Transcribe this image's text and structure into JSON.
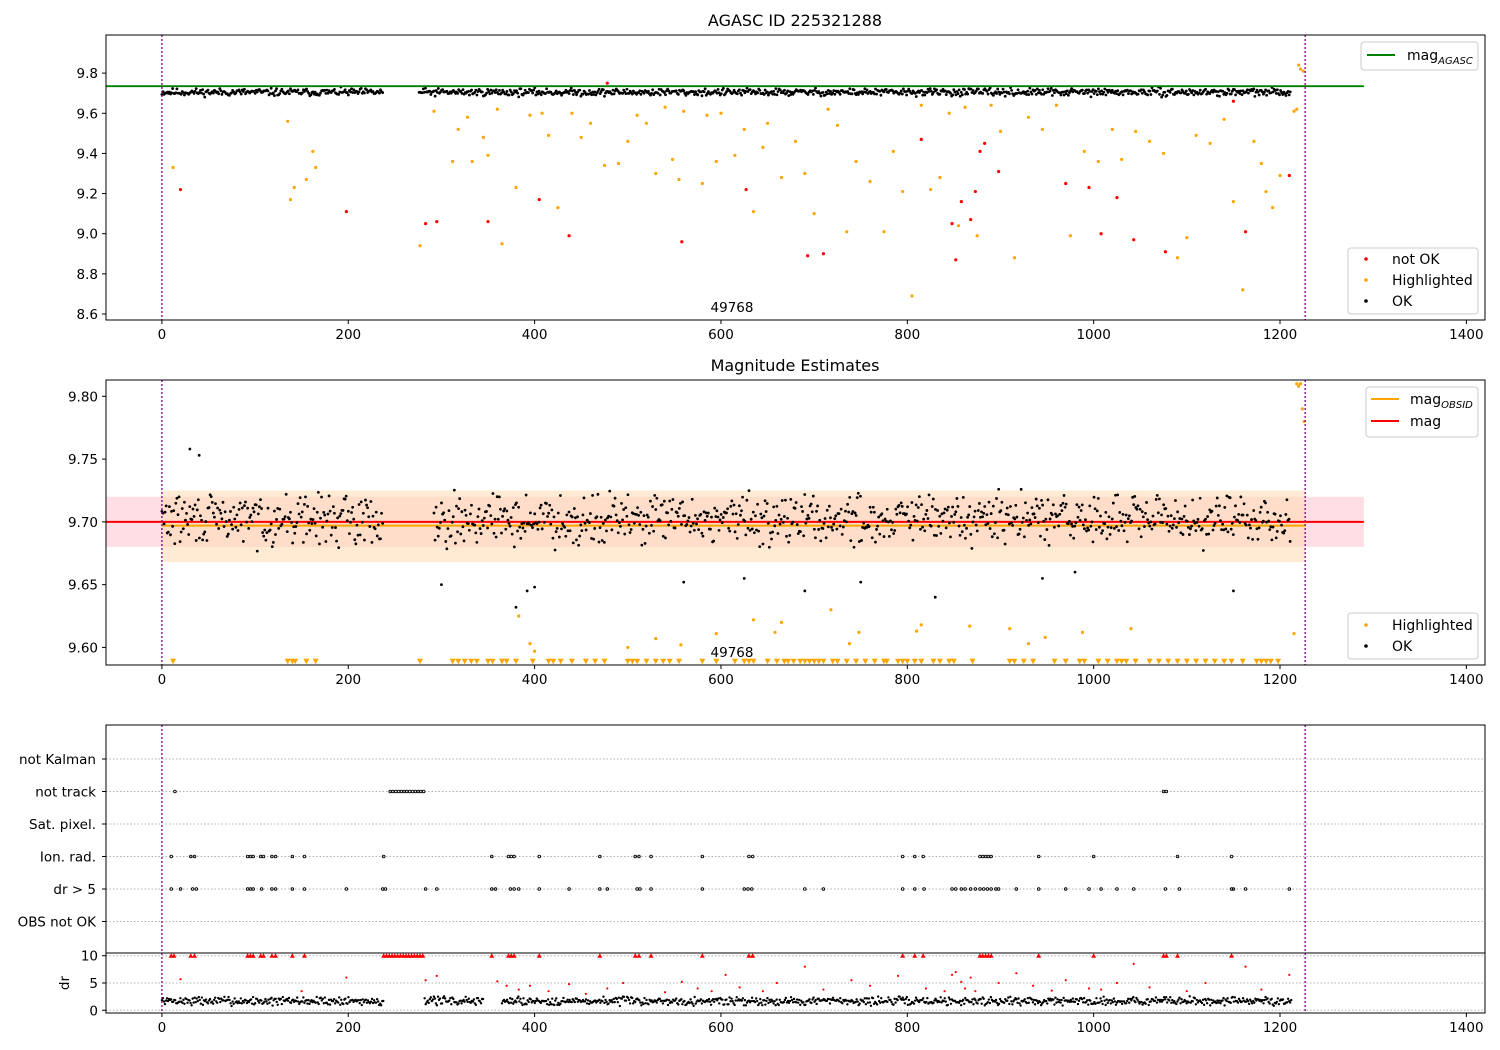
{
  "chart_data": [
    {
      "type": "scatter",
      "title": "AGASC ID 225321288",
      "xlim": [
        -60,
        1420
      ],
      "ylim": [
        8.57,
        9.99
      ],
      "xticks": [
        "0",
        "200",
        "400",
        "600",
        "800",
        "1000",
        "1200",
        "1400"
      ],
      "xtick_values": [
        0,
        200,
        400,
        600,
        800,
        1000,
        1200,
        1400
      ],
      "yticks": [
        "8.6",
        "8.8",
        "9.0",
        "9.2",
        "9.4",
        "9.6",
        "9.8"
      ],
      "ytick_values": [
        8.6,
        8.8,
        9.0,
        9.2,
        9.4,
        9.6,
        9.8
      ],
      "vlines": [
        0,
        1227
      ],
      "annotation": {
        "text": "49768",
        "x": 612,
        "y": 8.62
      },
      "hline": {
        "name": "mag",
        "subscript": "AGASC",
        "y": 9.735,
        "x_range": [
          -60,
          1290
        ],
        "color": "#008000"
      },
      "legend_lines": [
        {
          "label": "mag",
          "subscript": "AGASC",
          "color": "#008000"
        }
      ],
      "legend_points": [
        {
          "label": "not OK",
          "color": "#ff0000"
        },
        {
          "label": "Highlighted",
          "color": "#ffa500"
        },
        {
          "label": "OK",
          "color": "#000000"
        }
      ],
      "ok_band": {
        "center": 9.705,
        "spread": 0.02,
        "x_segments": [
          [
            0,
            238
          ],
          [
            276,
            1212
          ]
        ]
      },
      "series": [
        {
          "name": "not OK",
          "color": "#ff0000",
          "x": [
            20,
            198,
            283,
            295,
            350,
            405,
            437,
            478,
            558,
            627,
            693,
            710,
            815,
            848,
            852,
            858,
            868,
            873,
            878,
            883,
            898,
            970,
            995,
            1008,
            1025,
            1043,
            1077,
            1150,
            1163,
            1210
          ],
          "y": [
            9.22,
            9.11,
            9.05,
            9.06,
            9.06,
            9.17,
            8.99,
            9.75,
            8.96,
            9.22,
            8.89,
            8.9,
            9.47,
            9.05,
            8.87,
            9.16,
            9.07,
            9.21,
            9.41,
            9.45,
            9.31,
            9.25,
            9.23,
            9.0,
            9.18,
            8.97,
            8.91,
            9.66,
            9.01,
            9.29
          ]
        },
        {
          "name": "Highlighted",
          "color": "#ffa500",
          "x": [
            12,
            135,
            138,
            142,
            155,
            162,
            165,
            277,
            292,
            312,
            318,
            328,
            333,
            345,
            350,
            360,
            365,
            380,
            395,
            408,
            415,
            425,
            440,
            450,
            460,
            475,
            490,
            500,
            510,
            520,
            530,
            540,
            548,
            555,
            560,
            580,
            585,
            595,
            600,
            615,
            625,
            635,
            645,
            650,
            665,
            680,
            690,
            700,
            715,
            725,
            735,
            745,
            760,
            775,
            785,
            795,
            805,
            815,
            825,
            835,
            845,
            855,
            862,
            875,
            890,
            900,
            915,
            930,
            945,
            960,
            975,
            990,
            1005,
            1020,
            1030,
            1045,
            1060,
            1075,
            1090,
            1100,
            1110,
            1125,
            1140,
            1150,
            1160,
            1172,
            1180,
            1185,
            1192,
            1200,
            1215,
            1218,
            1220,
            1222,
            1225
          ],
          "y": [
            9.33,
            9.56,
            9.17,
            9.23,
            9.27,
            9.41,
            9.33,
            8.94,
            9.61,
            9.36,
            9.52,
            9.58,
            9.36,
            9.48,
            9.39,
            9.62,
            8.95,
            9.23,
            9.59,
            9.6,
            9.49,
            9.13,
            9.6,
            9.48,
            9.55,
            9.34,
            9.35,
            9.46,
            9.59,
            9.55,
            9.3,
            9.63,
            9.37,
            9.27,
            9.61,
            9.25,
            9.59,
            9.36,
            9.6,
            9.39,
            9.52,
            9.11,
            9.43,
            9.55,
            9.28,
            9.46,
            9.3,
            9.1,
            9.62,
            9.54,
            9.01,
            9.36,
            9.26,
            9.01,
            9.41,
            9.21,
            8.69,
            9.64,
            9.22,
            9.28,
            9.6,
            9.04,
            9.63,
            8.99,
            9.64,
            9.51,
            8.88,
            9.58,
            9.52,
            9.64,
            8.99,
            9.41,
            9.36,
            9.52,
            9.37,
            9.51,
            9.46,
            9.4,
            8.88,
            8.98,
            9.49,
            9.45,
            9.57,
            9.16,
            8.72,
            9.46,
            9.35,
            9.21,
            9.13,
            9.29,
            9.61,
            9.62,
            9.84,
            9.82,
            9.81
          ]
        }
      ]
    },
    {
      "type": "scatter",
      "title": "Magnitude Estimates",
      "xlim": [
        -60,
        1420
      ],
      "ylim": [
        9.586,
        9.813
      ],
      "xticks": [
        "0",
        "200",
        "400",
        "600",
        "800",
        "1000",
        "1200",
        "1400"
      ],
      "xtick_values": [
        0,
        200,
        400,
        600,
        800,
        1000,
        1200,
        1400
      ],
      "yticks": [
        "9.60",
        "9.65",
        "9.70",
        "9.75",
        "9.80"
      ],
      "ytick_values": [
        9.6,
        9.65,
        9.7,
        9.75,
        9.8
      ],
      "vlines": [
        0,
        1227
      ],
      "annotation": {
        "text": "49768",
        "x": 612,
        "y": 9.594
      },
      "lines": [
        {
          "name": "mag",
          "subscript": "OBSID",
          "y": 9.697,
          "x_range": [
            0,
            1227
          ],
          "color": "#ffa500"
        },
        {
          "name": "mag",
          "y": 9.7,
          "x_range": [
            -60,
            1290
          ],
          "color": "#ff0000"
        }
      ],
      "bands": [
        {
          "y_range": [
            9.68,
            9.72
          ],
          "x_range": [
            -60,
            1290
          ],
          "color": "#ffc0cb"
        },
        {
          "y_range": [
            9.668,
            9.725
          ],
          "x_range": [
            0,
            1227
          ],
          "color": "#ffdab0"
        }
      ],
      "legend_lines": [
        {
          "label": "mag",
          "subscript": "OBSID",
          "color": "#ffa500"
        },
        {
          "label": "mag",
          "color": "#ff0000"
        }
      ],
      "legend_points": [
        {
          "label": "Highlighted",
          "color": "#ffa500"
        },
        {
          "label": "OK",
          "color": "#000000"
        }
      ],
      "ok_points": {
        "center": 9.702,
        "spread": 0.012,
        "x_segments": [
          [
            0,
            238
          ],
          [
            292,
            1212
          ]
        ],
        "outliers_x": [
          30,
          40,
          300,
          380,
          392,
          400,
          560,
          625,
          690,
          750,
          830,
          945,
          980,
          1150
        ],
        "outliers_y": [
          9.758,
          9.753,
          9.65,
          9.632,
          9.645,
          9.648,
          9.652,
          9.655,
          9.645,
          9.652,
          9.64,
          9.655,
          9.66,
          9.645
        ]
      },
      "highlighted_points": {
        "x": [
          383,
          395,
          400,
          500,
          530,
          557,
          595,
          635,
          658,
          665,
          718,
          738,
          748,
          810,
          815,
          867,
          910,
          930,
          948,
          988,
          1040,
          1215,
          1218,
          1220,
          1222,
          1224,
          1226
        ],
        "y": [
          9.625,
          9.603,
          9.597,
          9.6,
          9.607,
          9.602,
          9.611,
          9.622,
          9.612,
          9.62,
          9.63,
          9.603,
          9.612,
          9.613,
          9.618,
          9.617,
          9.615,
          9.603,
          9.608,
          9.612,
          9.615,
          9.611,
          9.81,
          9.808,
          9.81,
          9.79,
          9.78
        ]
      },
      "triangles_y": 9.589,
      "triangles_x": [
        12,
        135,
        140,
        143,
        155,
        165,
        277,
        312,
        318,
        325,
        332,
        338,
        350,
        355,
        365,
        370,
        380,
        398,
        415,
        420,
        428,
        440,
        455,
        465,
        475,
        500,
        505,
        510,
        520,
        530,
        538,
        545,
        555,
        580,
        595,
        615,
        625,
        630,
        635,
        650,
        660,
        668,
        672,
        678,
        685,
        690,
        695,
        700,
        705,
        710,
        720,
        725,
        735,
        745,
        755,
        765,
        775,
        778,
        790,
        795,
        800,
        808,
        815,
        828,
        835,
        845,
        850,
        870,
        910,
        915,
        925,
        935,
        958,
        970,
        985,
        990,
        1005,
        1015,
        1025,
        1030,
        1035,
        1045,
        1060,
        1070,
        1080,
        1090,
        1100,
        1110,
        1120,
        1130,
        1140,
        1148,
        1160,
        1175,
        1180,
        1185,
        1190,
        1198
      ]
    },
    {
      "type": "scatter",
      "title": "",
      "xlim": [
        -60,
        1420
      ],
      "xticks": [
        "0",
        "200",
        "400",
        "600",
        "800",
        "1000",
        "1200",
        "1400"
      ],
      "xtick_values": [
        0,
        200,
        400,
        600,
        800,
        1000,
        1200,
        1400
      ],
      "vlines": [
        0,
        1227
      ],
      "flag_rows": [
        "not Kalman",
        "not track",
        "Sat. pixel.",
        "Ion. rad.",
        "dr > 5",
        "OBS not OK"
      ],
      "flags": {
        "not Kalman": [],
        "not track": [
          14,
          245,
          248,
          251,
          254,
          257,
          260,
          263,
          266,
          269,
          272,
          275,
          278,
          281,
          1075,
          1078
        ],
        "Sat. pixel.": [],
        "Ion. rad.": [
          10,
          31,
          35,
          92,
          95,
          98,
          106,
          109,
          118,
          122,
          140,
          153,
          238,
          354,
          372,
          375,
          378,
          405,
          470,
          508,
          512,
          525,
          580,
          630,
          634,
          795,
          808,
          817,
          878,
          881,
          884,
          887,
          890,
          941,
          1000,
          1090,
          1148
        ],
        "dr > 5": [
          10,
          20,
          33,
          37,
          92,
          95,
          98,
          107,
          118,
          122,
          140,
          153,
          198,
          237,
          240,
          283,
          295,
          354,
          358,
          374,
          378,
          383,
          405,
          437,
          470,
          478,
          510,
          513,
          525,
          580,
          625,
          629,
          633,
          690,
          710,
          795,
          808,
          818,
          848,
          852,
          858,
          862,
          868,
          873,
          878,
          882,
          886,
          890,
          895,
          898,
          917,
          941,
          970,
          995,
          1008,
          1025,
          1043,
          1077,
          1092,
          1148,
          1150,
          1163,
          1210
        ],
        "OBS not OK": []
      },
      "dr_panel": {
        "ylabel": "dr",
        "yticks": [
          "0",
          "5",
          "10"
        ],
        "ytick_values": [
          0,
          5,
          10
        ],
        "ylim": [
          -0.5,
          10.5
        ],
        "clip_value": 10,
        "ok_center": 1.7,
        "ok_spread": 0.6,
        "ok_x_segments": [
          [
            0,
            238
          ],
          [
            282,
            345
          ],
          [
            365,
            1212
          ]
        ],
        "clipped_x": [
          10,
          13,
          31,
          35,
          92,
          95,
          98,
          106,
          109,
          118,
          122,
          140,
          153,
          238,
          241,
          244,
          247,
          250,
          253,
          256,
          259,
          262,
          265,
          268,
          271,
          274,
          277,
          280,
          354,
          372,
          375,
          378,
          405,
          470,
          508,
          512,
          525,
          580,
          630,
          634,
          795,
          808,
          817,
          878,
          881,
          884,
          887,
          890,
          941,
          1000,
          1075,
          1078,
          1090,
          1148
        ],
        "red_x": [
          20,
          150,
          198,
          283,
          295,
          360,
          370,
          383,
          395,
          415,
          437,
          455,
          478,
          495,
          540,
          558,
          575,
          590,
          605,
          620,
          645,
          660,
          690,
          710,
          740,
          760,
          790,
          820,
          840,
          848,
          852,
          858,
          862,
          868,
          873,
          898,
          917,
          935,
          955,
          970,
          995,
          1008,
          1025,
          1043,
          1060,
          1100,
          1120,
          1163,
          1180,
          1210
        ],
        "red_y": [
          5.7,
          3.5,
          6.0,
          5.5,
          6.3,
          5.3,
          4.5,
          3.8,
          4.5,
          3.5,
          4.8,
          3.0,
          4.0,
          5.0,
          3.3,
          5.2,
          4.0,
          3.5,
          6.5,
          4.2,
          3.5,
          5.0,
          8.0,
          3.8,
          5.5,
          4.5,
          6.3,
          4.0,
          3.5,
          6.5,
          7.0,
          5.2,
          4.0,
          6.0,
          3.5,
          5.0,
          6.8,
          4.5,
          3.6,
          5.5,
          4.0,
          3.8,
          5.0,
          8.5,
          4.2,
          3.5,
          5.0,
          8.0,
          3.8,
          6.5
        ]
      }
    }
  ]
}
